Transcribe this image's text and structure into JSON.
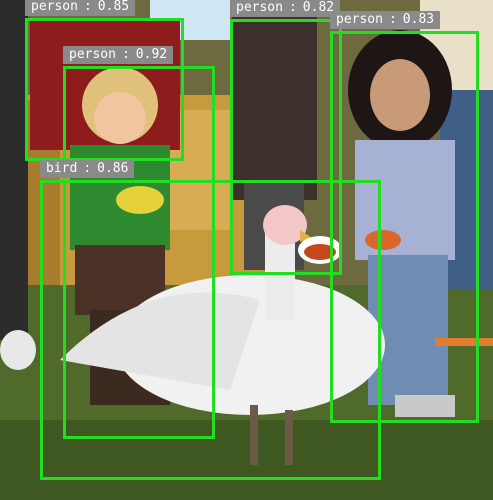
{
  "detections": [
    {
      "label": "person",
      "score": "0.85",
      "color": "#22dd22"
    },
    {
      "label": "person",
      "score": "0.92",
      "color": "#22dd22"
    },
    {
      "label": "person",
      "score": "0.82",
      "color": "#22dd22"
    },
    {
      "label": "person",
      "score": "0.83",
      "color": "#22dd22"
    },
    {
      "label": "bird",
      "score": "0.86",
      "color": "#22dd22"
    }
  ],
  "label_background": "#8a8a8a",
  "label_text_color": "#ffffff"
}
